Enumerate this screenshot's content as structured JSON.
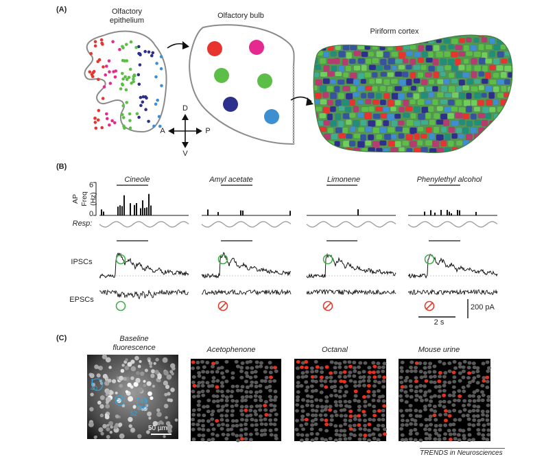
{
  "panel_a": {
    "letter": "(A)",
    "epithelium_label": "Olfactory\nepithelium",
    "bulb_label": "Olfactory bulb",
    "cortex_label": "Piriform cortex",
    "compass": {
      "d": "D",
      "v": "V",
      "a": "A",
      "p": "P"
    },
    "colors": {
      "red": "#e8342f",
      "magenta": "#e6298f",
      "green": "#5cbe46",
      "navy": "#2c2f8c",
      "blue": "#3e8fd0"
    }
  },
  "panel_b": {
    "letter": "(B)",
    "odors": [
      "Cineole",
      "Amyl acetate",
      "Limonene",
      "Phenylethyl alcohol"
    ],
    "y_axis_label": "AP Freq\n(Hz)",
    "y_max_tick": "6",
    "y_min_tick": "0",
    "resp_label": "Resp:",
    "ipsc_label": "IPSCs",
    "epsc_label": "EPSCs",
    "scale_current": "200 pA",
    "scale_time": "2 s",
    "ipsc_response": [
      true,
      true,
      true,
      true
    ],
    "epsc_response": [
      true,
      false,
      false,
      false
    ]
  },
  "panel_c": {
    "letter": "(C)",
    "labels": [
      "Baseline\nfluorescence",
      "Acetophenone",
      "Octanal",
      "Mouse urine"
    ],
    "scale_bar": "50 µm",
    "roi_numbers": [
      "1",
      "40",
      "50",
      "49",
      "50",
      "52"
    ]
  },
  "footer": "TRENDS in Neurosciences"
}
